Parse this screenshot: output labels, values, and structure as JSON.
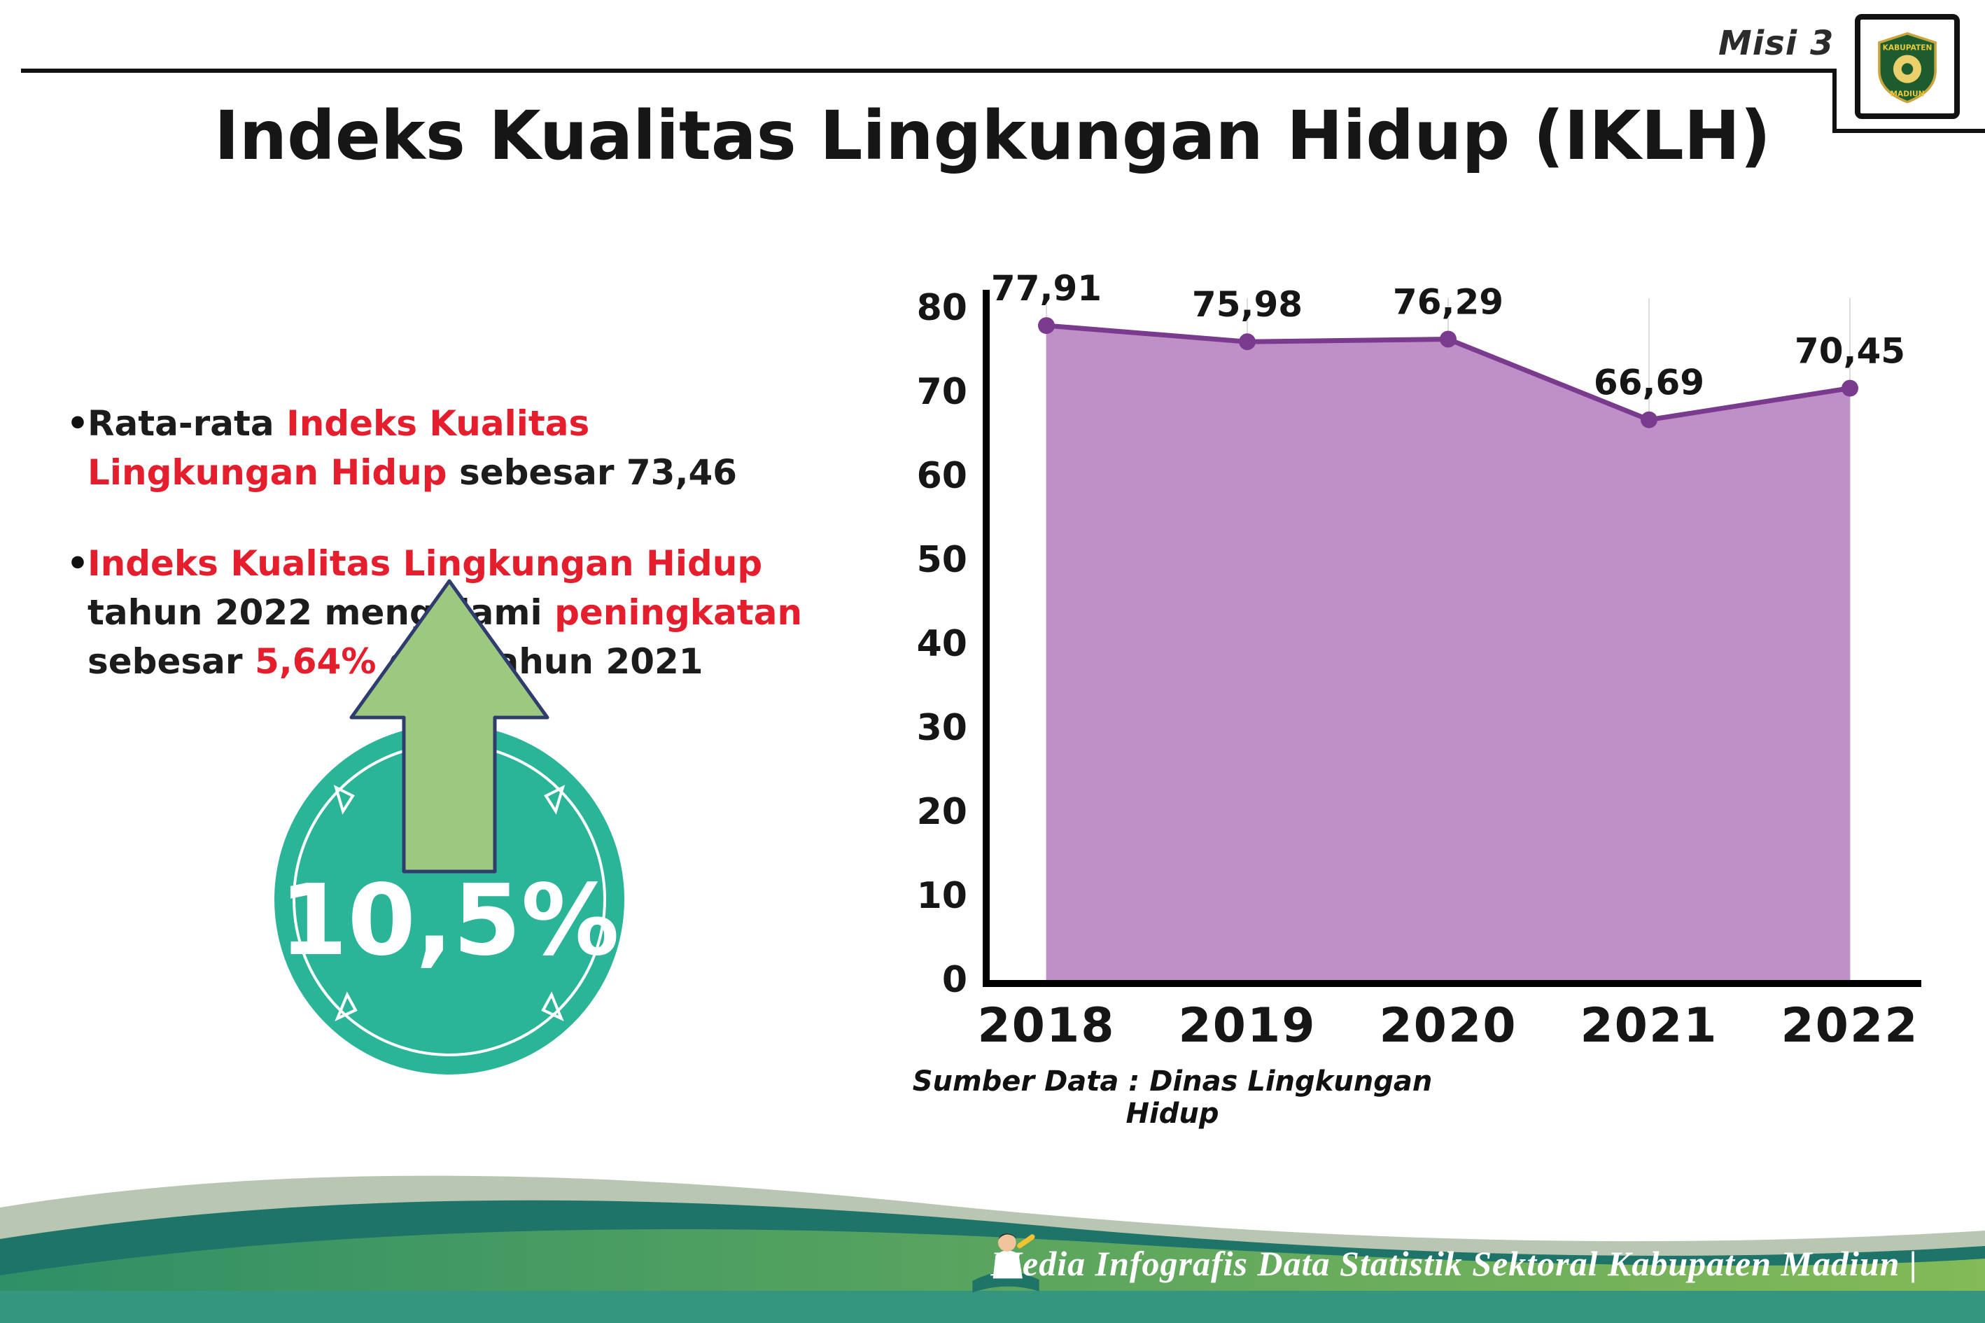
{
  "header": {
    "misi_label": "Misi 3",
    "logo_top": "KABUPATEN",
    "logo_bottom": "MADIUN"
  },
  "title": "Indeks Kualitas Lingkungan Hidup (IKLH)",
  "bullets": [
    {
      "segments": [
        {
          "t": "Rata-rata ",
          "c": "dark"
        },
        {
          "t": "Indeks Kualitas Lingkungan Hidup",
          "c": "red"
        },
        {
          "t": " sebesar 73,46",
          "c": "dark"
        }
      ]
    },
    {
      "segments": [
        {
          "t": "Indeks Kualitas Lingkungan Hidup",
          "c": "red"
        },
        {
          "t": " tahun 2022 mengalami ",
          "c": "dark"
        },
        {
          "t": "peningkatan",
          "c": "red"
        },
        {
          "t": " sebesar ",
          "c": "dark"
        },
        {
          "t": "5,64%",
          "c": "red"
        },
        {
          "t": " dari tahun 2021",
          "c": "dark"
        }
      ]
    }
  ],
  "badge": {
    "value": "10,5%",
    "circle_color": "#2ab598",
    "arrow_color": "#9cc87f"
  },
  "chart_data": {
    "type": "area",
    "categories": [
      "2018",
      "2019",
      "2020",
      "2021",
      "2022"
    ],
    "values": [
      77.91,
      75.98,
      76.29,
      66.69,
      70.45
    ],
    "labels": [
      "77,91",
      "75,98",
      "76,29",
      "66,69",
      "70,45"
    ],
    "yticks": [
      0,
      10,
      20,
      30,
      40,
      50,
      60,
      70,
      80
    ],
    "ylim": [
      0,
      80
    ],
    "grid": "vertical-faint",
    "legend": "none",
    "line_color": "#7a3b8f",
    "fill_color": "#bf90c8",
    "source": "Sumber Data : Dinas Lingkungan Hidup"
  },
  "footer": {
    "credit": "Media Infografis Data Statistik Sektoral Kabupaten Madiun |"
  },
  "colors": {
    "accent_red": "#e41e2d",
    "badge_teal": "#2ab598",
    "arrow_green": "#9cc87f",
    "chart_line": "#7a3b8f",
    "chart_fill": "#bf90c8",
    "footer_dark_teal": "#1e7468",
    "footer_green": "#4da06a",
    "footer_bar": "#35967f"
  }
}
